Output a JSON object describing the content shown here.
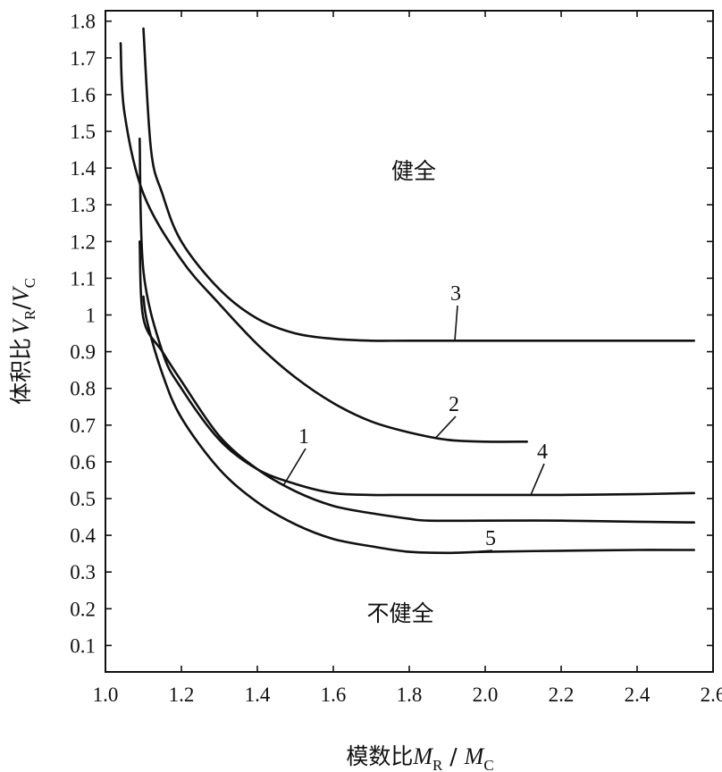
{
  "chart_data": {
    "type": "line",
    "xlabel": {
      "prefix": "模数比",
      "var1": "M",
      "sub1": "R",
      "sep": " / ",
      "var2": "M",
      "sub2": "C"
    },
    "ylabel": {
      "prefix": "体积比",
      "var1": "V",
      "sub1": "R",
      "sep": "/",
      "var2": "V",
      "sub2": "C"
    },
    "xlim": [
      1.0,
      2.6
    ],
    "ylim": [
      0.0,
      1.8
    ],
    "x_ticks": [
      "1.0",
      "1.2",
      "1.4",
      "1.6",
      "1.8",
      "2.0",
      "2.2",
      "2.4",
      "2.6"
    ],
    "y_ticks": [
      "0.1",
      "0.2",
      "0.3",
      "0.4",
      "0.5",
      "0.6",
      "0.7",
      "0.8",
      "0.9",
      "1",
      "1.1",
      "1.2",
      "1.3",
      "1.4",
      "1.5",
      "1.6",
      "1.7",
      "1.8"
    ],
    "grid": false,
    "regions": {
      "upper": "健全",
      "lower": "不健全"
    },
    "series": [
      {
        "name": "1",
        "x": [
          1.09,
          1.1,
          1.15,
          1.2,
          1.3,
          1.4,
          1.5,
          1.6,
          1.7,
          1.8,
          1.85,
          2.0,
          2.2,
          2.4,
          2.55
        ],
        "y": [
          1.2,
          0.99,
          0.9,
          0.82,
          0.67,
          0.58,
          0.52,
          0.48,
          0.46,
          0.445,
          0.44,
          0.44,
          0.44,
          0.437,
          0.435
        ]
      },
      {
        "name": "2",
        "x": [
          1.04,
          1.05,
          1.1,
          1.2,
          1.3,
          1.4,
          1.5,
          1.6,
          1.7,
          1.8,
          1.9,
          2.0,
          2.11
        ],
        "y": [
          1.74,
          1.55,
          1.33,
          1.15,
          1.03,
          0.92,
          0.83,
          0.76,
          0.71,
          0.68,
          0.66,
          0.655,
          0.655
        ]
      },
      {
        "name": "3",
        "x": [
          1.1,
          1.12,
          1.15,
          1.2,
          1.3,
          1.4,
          1.5,
          1.6,
          1.7,
          1.8,
          2.0,
          2.2,
          2.4,
          2.55
        ],
        "y": [
          1.78,
          1.45,
          1.33,
          1.2,
          1.07,
          0.99,
          0.95,
          0.935,
          0.93,
          0.93,
          0.93,
          0.93,
          0.93,
          0.93
        ]
      },
      {
        "name": "4",
        "x": [
          1.09,
          1.1,
          1.15,
          1.2,
          1.3,
          1.4,
          1.5,
          1.6,
          1.7,
          1.8,
          2.0,
          2.2,
          2.4,
          2.55
        ],
        "y": [
          1.48,
          1.12,
          0.9,
          0.8,
          0.66,
          0.58,
          0.54,
          0.515,
          0.51,
          0.51,
          0.51,
          0.51,
          0.512,
          0.515
        ]
      },
      {
        "name": "5",
        "x": [
          1.1,
          1.11,
          1.15,
          1.2,
          1.3,
          1.4,
          1.5,
          1.6,
          1.7,
          1.8,
          1.9,
          2.0,
          2.2,
          2.4,
          2.55
        ],
        "y": [
          1.05,
          0.98,
          0.84,
          0.72,
          0.58,
          0.49,
          0.43,
          0.39,
          0.37,
          0.355,
          0.352,
          0.355,
          0.358,
          0.36,
          0.36
        ]
      }
    ]
  }
}
